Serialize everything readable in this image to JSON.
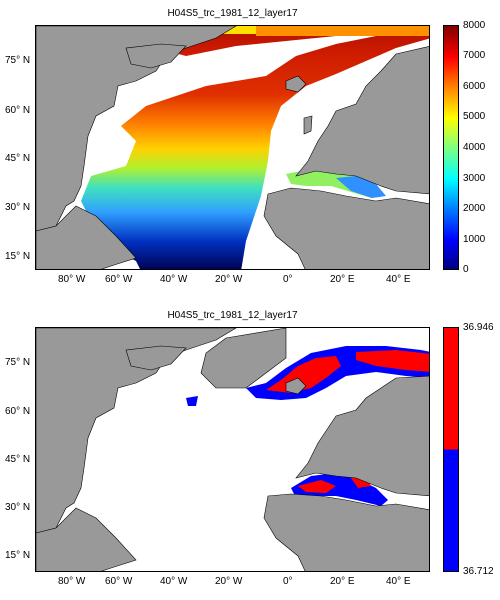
{
  "panels": [
    {
      "title": "H04S5_trc_1981_12_layer17",
      "colorbar_ticks": [
        "8000",
        "7000",
        "6000",
        "5000",
        "4000",
        "3000",
        "2000",
        "1000",
        "0"
      ],
      "colorbar_range": [
        0,
        8000
      ],
      "colormap": "jet"
    },
    {
      "title": "H04S5_trc_1981_12_layer17",
      "colorbar_ticks": [
        "36.946",
        "36.712"
      ],
      "colorbar_colors": {
        "high": "#ff0000",
        "low": "#0000ff"
      }
    }
  ],
  "axes": {
    "lon_ticks": [
      "80° W",
      "60° W",
      "40° W",
      "20° W",
      "0°",
      "20° E",
      "40° E"
    ],
    "lat_ticks": [
      "75° N",
      "60° N",
      "45° N",
      "30° N",
      "15° N"
    ]
  },
  "colors": {
    "land": "#999999",
    "ocean_blank": "#ffffff"
  }
}
